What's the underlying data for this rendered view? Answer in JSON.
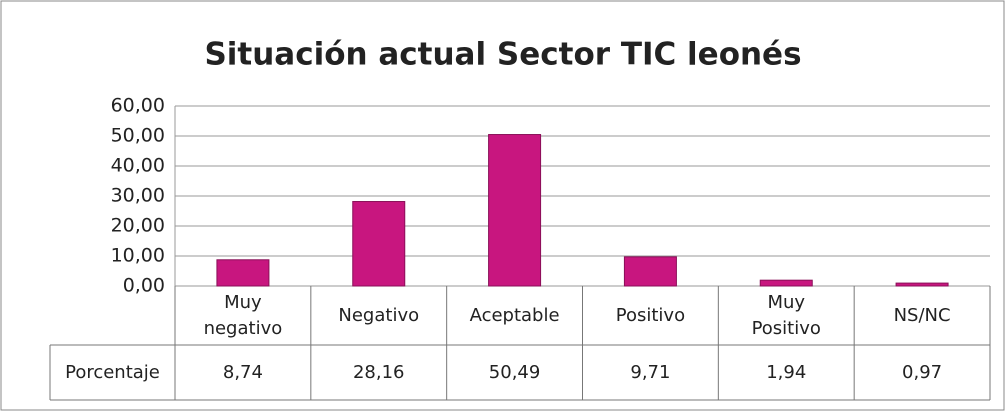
{
  "chart_data": {
    "type": "bar",
    "title": "Situación actual Sector TIC leonés",
    "categories": [
      "Muy negativo",
      "Negativo",
      "Aceptable",
      "Positivo",
      "Muy Positivo",
      "NS/NC"
    ],
    "series": [
      {
        "name": "Porcentaje",
        "color": "#c8167f",
        "values": [
          8.74,
          28.16,
          50.49,
          9.71,
          1.94,
          0.97
        ],
        "value_labels": [
          "8,74",
          "28,16",
          "50,49",
          "9,71",
          "1,94",
          "0,97"
        ]
      }
    ],
    "ylim": [
      0,
      60
    ],
    "yticks": [
      {
        "value": 0,
        "label": "0,00"
      },
      {
        "value": 10,
        "label": "10,00"
      },
      {
        "value": 20,
        "label": "20,00"
      },
      {
        "value": 30,
        "label": "30,00"
      },
      {
        "value": 40,
        "label": "40,00"
      },
      {
        "value": 50,
        "label": "50,00"
      },
      {
        "value": 60,
        "label": "60,00"
      }
    ],
    "grid": true,
    "data_table": true
  }
}
